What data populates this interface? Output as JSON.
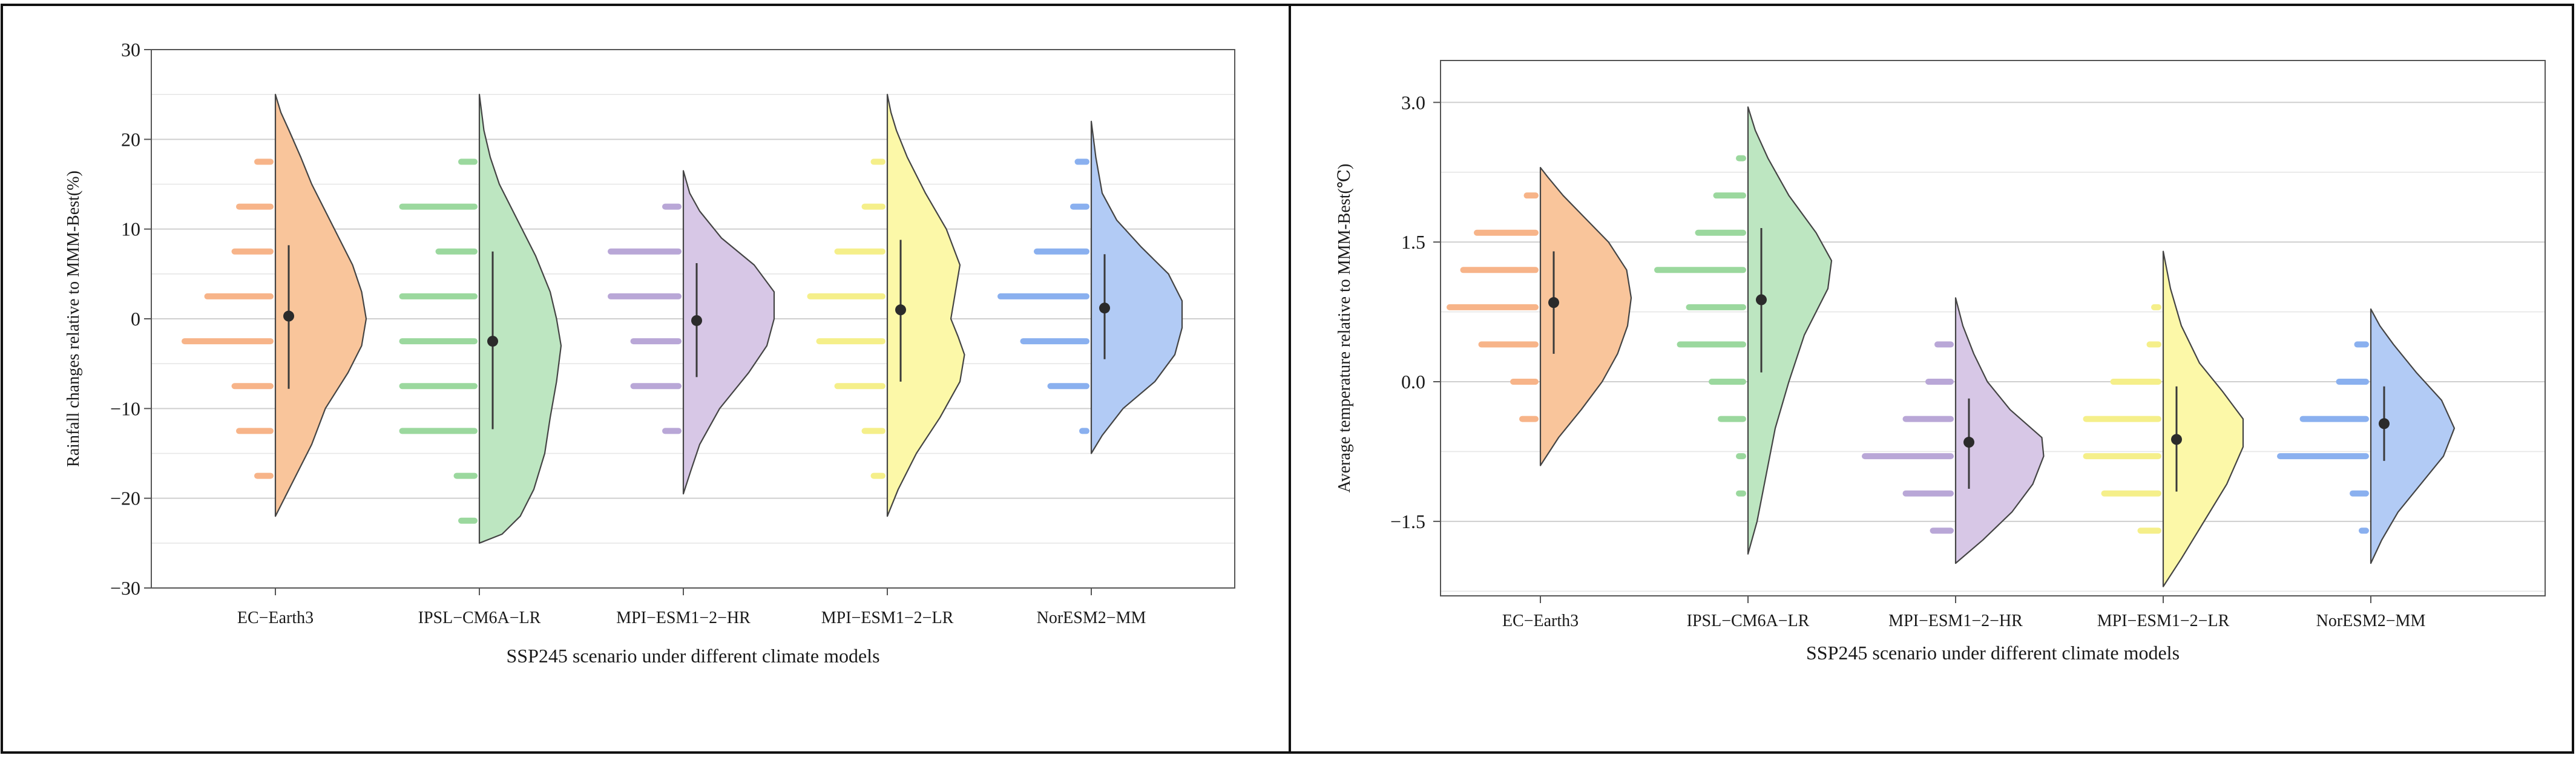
{
  "shared": {
    "categories": [
      "EC−Earth3",
      "IPSL−CM6A−LR",
      "MPI−ESM1−2−HR",
      "MPI−ESM1−2−LR",
      "NorESM2−MM"
    ],
    "colors": [
      "#f9c59b",
      "#bde6c1",
      "#d7c7e6",
      "#fcf8a8",
      "#b2cbf5"
    ],
    "dash_colors": [
      "#f7b489",
      "#9bd89e",
      "#b9a7d7",
      "#f5ef8a",
      "#8ab0ef"
    ],
    "outline_color": "#444444",
    "ci_color": "#3a3a3a"
  },
  "chart_data": [
    {
      "type": "raincloud",
      "title": "",
      "xlabel": "SSP245 scenario under different climate models",
      "ylabel": "Rainfall changes relative to MMM-Best(%)",
      "ylim": [
        -30,
        30
      ],
      "yticks": [
        -30,
        -20,
        -10,
        0,
        10,
        20,
        30
      ],
      "ytick_labels": [
        "−30",
        "−20",
        "−10",
        "0",
        "10",
        "20",
        "30"
      ],
      "gridlines": [
        -25,
        -20,
        -15,
        -10,
        -5,
        0,
        5,
        10,
        15,
        20,
        25
      ],
      "series": [
        {
          "name": "EC−Earth3",
          "mean": 0.3,
          "ci": [
            -7.8,
            8.2
          ],
          "range": [
            -22,
            25
          ],
          "density": [
            [
              -22,
              0
            ],
            [
              -20,
              0.1
            ],
            [
              -17,
              0.25
            ],
            [
              -14,
              0.4
            ],
            [
              -10,
              0.55
            ],
            [
              -6,
              0.8
            ],
            [
              -3,
              0.95
            ],
            [
              0,
              1.0
            ],
            [
              3,
              0.95
            ],
            [
              6,
              0.85
            ],
            [
              9,
              0.7
            ],
            [
              12,
              0.55
            ],
            [
              15,
              0.4
            ],
            [
              18,
              0.28
            ],
            [
              21,
              0.15
            ],
            [
              23,
              0.06
            ],
            [
              25,
              0
            ]
          ],
          "hist": [
            [
              -17.5,
              0.2
            ],
            [
              -12.5,
              0.4
            ],
            [
              -7.5,
              0.45
            ],
            [
              -2.5,
              1.0
            ],
            [
              2.5,
              0.75
            ],
            [
              7.5,
              0.45
            ],
            [
              12.5,
              0.4
            ],
            [
              17.5,
              0.2
            ]
          ]
        },
        {
          "name": "IPSL−CM6A−LR",
          "mean": -2.5,
          "ci": [
            -12.3,
            7.5
          ],
          "range": [
            -25,
            25
          ],
          "density": [
            [
              -25,
              0
            ],
            [
              -24,
              0.25
            ],
            [
              -22,
              0.45
            ],
            [
              -19,
              0.6
            ],
            [
              -15,
              0.72
            ],
            [
              -11,
              0.78
            ],
            [
              -7,
              0.85
            ],
            [
              -3,
              0.9
            ],
            [
              0,
              0.85
            ],
            [
              3,
              0.78
            ],
            [
              7,
              0.62
            ],
            [
              11,
              0.42
            ],
            [
              15,
              0.22
            ],
            [
              18,
              0.12
            ],
            [
              21,
              0.05
            ],
            [
              25,
              0
            ]
          ],
          "hist": [
            [
              -22.5,
              0.2
            ],
            [
              -17.5,
              0.25
            ],
            [
              -12.5,
              0.85
            ],
            [
              -7.5,
              0.85
            ],
            [
              -2.5,
              0.85
            ],
            [
              2.5,
              0.85
            ],
            [
              7.5,
              0.45
            ],
            [
              12.5,
              0.85
            ],
            [
              17.5,
              0.2
            ]
          ]
        },
        {
          "name": "MPI−ESM1−2−HR",
          "mean": -0.2,
          "ci": [
            -6.5,
            6.2
          ],
          "range": [
            -19.5,
            16.5
          ],
          "density": [
            [
              -19.5,
              0
            ],
            [
              -17,
              0.08
            ],
            [
              -14,
              0.18
            ],
            [
              -10,
              0.4
            ],
            [
              -6,
              0.72
            ],
            [
              -3,
              0.92
            ],
            [
              0,
              1.0
            ],
            [
              3,
              1.0
            ],
            [
              6,
              0.78
            ],
            [
              9,
              0.42
            ],
            [
              12,
              0.18
            ],
            [
              14,
              0.07
            ],
            [
              16.5,
              0
            ]
          ],
          "hist": [
            [
              -12.5,
              0.2
            ],
            [
              -7.5,
              0.55
            ],
            [
              -2.5,
              0.55
            ],
            [
              2.5,
              0.8
            ],
            [
              7.5,
              0.8
            ],
            [
              12.5,
              0.2
            ]
          ]
        },
        {
          "name": "MPI−ESM1−2−LR",
          "mean": 1.0,
          "ci": [
            -7.0,
            8.8
          ],
          "range": [
            -22,
            25
          ],
          "density": [
            [
              -22,
              0
            ],
            [
              -19,
              0.12
            ],
            [
              -15,
              0.32
            ],
            [
              -11,
              0.58
            ],
            [
              -7,
              0.8
            ],
            [
              -4,
              0.85
            ],
            [
              -2,
              0.78
            ],
            [
              0,
              0.7
            ],
            [
              3,
              0.75
            ],
            [
              6,
              0.8
            ],
            [
              10,
              0.65
            ],
            [
              14,
              0.42
            ],
            [
              18,
              0.22
            ],
            [
              21,
              0.1
            ],
            [
              23,
              0.04
            ],
            [
              25,
              0
            ]
          ],
          "hist": [
            [
              -17.5,
              0.15
            ],
            [
              -12.5,
              0.25
            ],
            [
              -7.5,
              0.55
            ],
            [
              -2.5,
              0.75
            ],
            [
              2.5,
              0.85
            ],
            [
              7.5,
              0.55
            ],
            [
              12.5,
              0.25
            ],
            [
              17.5,
              0.15
            ]
          ]
        },
        {
          "name": "NorESM2−MM",
          "mean": 1.2,
          "ci": [
            -4.5,
            7.2
          ],
          "range": [
            -15,
            22
          ],
          "density": [
            [
              -15,
              0
            ],
            [
              -13,
              0.12
            ],
            [
              -10,
              0.35
            ],
            [
              -7,
              0.7
            ],
            [
              -4,
              0.92
            ],
            [
              -1,
              1.0
            ],
            [
              2,
              1.0
            ],
            [
              5,
              0.85
            ],
            [
              8,
              0.55
            ],
            [
              11,
              0.28
            ],
            [
              14,
              0.12
            ],
            [
              18,
              0.05
            ],
            [
              22,
              0
            ]
          ],
          "hist": [
            [
              -12.5,
              0.1
            ],
            [
              -7.5,
              0.45
            ],
            [
              -2.5,
              0.75
            ],
            [
              2.5,
              1.0
            ],
            [
              7.5,
              0.6
            ],
            [
              12.5,
              0.2
            ],
            [
              17.5,
              0.15
            ]
          ]
        }
      ]
    },
    {
      "type": "raincloud",
      "title": "",
      "xlabel": "SSP245 scenario under different climate models",
      "ylabel": "Average temperature relative to MMM-Best(℃)",
      "ylim": [
        -2.3,
        3.45
      ],
      "yticks": [
        -1.5,
        0.0,
        1.5,
        3.0
      ],
      "ytick_labels": [
        "−1.5",
        "0.0",
        "1.5",
        "3.0"
      ],
      "gridlines": [
        -2.25,
        -1.5,
        -0.75,
        0.0,
        0.75,
        1.5,
        2.25,
        3.0
      ],
      "series": [
        {
          "name": "EC−Earth3",
          "mean": 0.85,
          "ci": [
            0.3,
            1.4
          ],
          "range": [
            -0.9,
            2.3
          ],
          "density": [
            [
              -0.9,
              0
            ],
            [
              -0.6,
              0.2
            ],
            [
              -0.3,
              0.45
            ],
            [
              0.0,
              0.68
            ],
            [
              0.3,
              0.85
            ],
            [
              0.6,
              0.96
            ],
            [
              0.9,
              1.0
            ],
            [
              1.2,
              0.95
            ],
            [
              1.5,
              0.75
            ],
            [
              1.8,
              0.45
            ],
            [
              2.0,
              0.25
            ],
            [
              2.2,
              0.08
            ],
            [
              2.3,
              0
            ]
          ],
          "hist": [
            [
              -0.4,
              0.2
            ],
            [
              0.0,
              0.3
            ],
            [
              0.4,
              0.65
            ],
            [
              0.8,
              1.0
            ],
            [
              1.2,
              0.85
            ],
            [
              1.6,
              0.7
            ],
            [
              2.0,
              0.15
            ]
          ]
        },
        {
          "name": "IPSL−CM6A−LR",
          "mean": 0.88,
          "ci": [
            0.1,
            1.65
          ],
          "range": [
            -1.85,
            2.95
          ],
          "density": [
            [
              -1.85,
              0
            ],
            [
              -1.5,
              0.1
            ],
            [
              -1.0,
              0.2
            ],
            [
              -0.5,
              0.3
            ],
            [
              0.0,
              0.45
            ],
            [
              0.5,
              0.62
            ],
            [
              1.0,
              0.88
            ],
            [
              1.3,
              0.92
            ],
            [
              1.6,
              0.75
            ],
            [
              2.0,
              0.45
            ],
            [
              2.4,
              0.22
            ],
            [
              2.7,
              0.08
            ],
            [
              2.95,
              0
            ]
          ],
          "hist": [
            [
              -1.2,
              0.1
            ],
            [
              -0.8,
              0.1
            ],
            [
              -0.4,
              0.3
            ],
            [
              0.0,
              0.4
            ],
            [
              0.4,
              0.75
            ],
            [
              0.8,
              0.65
            ],
            [
              1.2,
              1.0
            ],
            [
              1.6,
              0.55
            ],
            [
              2.0,
              0.35
            ],
            [
              2.4,
              0.1
            ]
          ]
        },
        {
          "name": "MPI−ESM1−2−HR",
          "mean": -0.65,
          "ci": [
            -1.15,
            -0.18
          ],
          "range": [
            -1.95,
            0.9
          ],
          "density": [
            [
              -1.95,
              0
            ],
            [
              -1.7,
              0.3
            ],
            [
              -1.4,
              0.62
            ],
            [
              -1.1,
              0.85
            ],
            [
              -0.8,
              0.97
            ],
            [
              -0.6,
              0.95
            ],
            [
              -0.3,
              0.6
            ],
            [
              0.0,
              0.35
            ],
            [
              0.3,
              0.2
            ],
            [
              0.6,
              0.08
            ],
            [
              0.9,
              0
            ]
          ],
          "hist": [
            [
              -1.6,
              0.25
            ],
            [
              -1.2,
              0.55
            ],
            [
              -0.8,
              1.0
            ],
            [
              -0.4,
              0.55
            ],
            [
              0.0,
              0.3
            ],
            [
              0.4,
              0.2
            ]
          ]
        },
        {
          "name": "MPI−ESM1−2−LR",
          "mean": -0.62,
          "ci": [
            -1.18,
            -0.05
          ],
          "range": [
            -2.2,
            1.4
          ],
          "density": [
            [
              -2.2,
              0
            ],
            [
              -1.9,
              0.2
            ],
            [
              -1.5,
              0.45
            ],
            [
              -1.1,
              0.7
            ],
            [
              -0.7,
              0.88
            ],
            [
              -0.4,
              0.88
            ],
            [
              -0.1,
              0.65
            ],
            [
              0.2,
              0.4
            ],
            [
              0.6,
              0.2
            ],
            [
              1.0,
              0.08
            ],
            [
              1.4,
              0
            ]
          ],
          "hist": [
            [
              -1.6,
              0.25
            ],
            [
              -1.2,
              0.65
            ],
            [
              -0.8,
              0.85
            ],
            [
              -0.4,
              0.85
            ],
            [
              0.0,
              0.55
            ],
            [
              0.4,
              0.15
            ],
            [
              0.8,
              0.1
            ]
          ]
        },
        {
          "name": "NorESM2−MM",
          "mean": -0.45,
          "ci": [
            -0.85,
            -0.05
          ],
          "range": [
            -1.95,
            0.78
          ],
          "density": [
            [
              -1.95,
              0
            ],
            [
              -1.7,
              0.12
            ],
            [
              -1.4,
              0.3
            ],
            [
              -1.1,
              0.55
            ],
            [
              -0.8,
              0.8
            ],
            [
              -0.5,
              0.92
            ],
            [
              -0.2,
              0.78
            ],
            [
              0.1,
              0.5
            ],
            [
              0.4,
              0.25
            ],
            [
              0.6,
              0.1
            ],
            [
              0.78,
              0
            ]
          ],
          "hist": [
            [
              -1.6,
              0.1
            ],
            [
              -1.2,
              0.2
            ],
            [
              -0.8,
              1.0
            ],
            [
              -0.4,
              0.75
            ],
            [
              0.0,
              0.35
            ],
            [
              0.4,
              0.15
            ]
          ]
        }
      ]
    }
  ]
}
